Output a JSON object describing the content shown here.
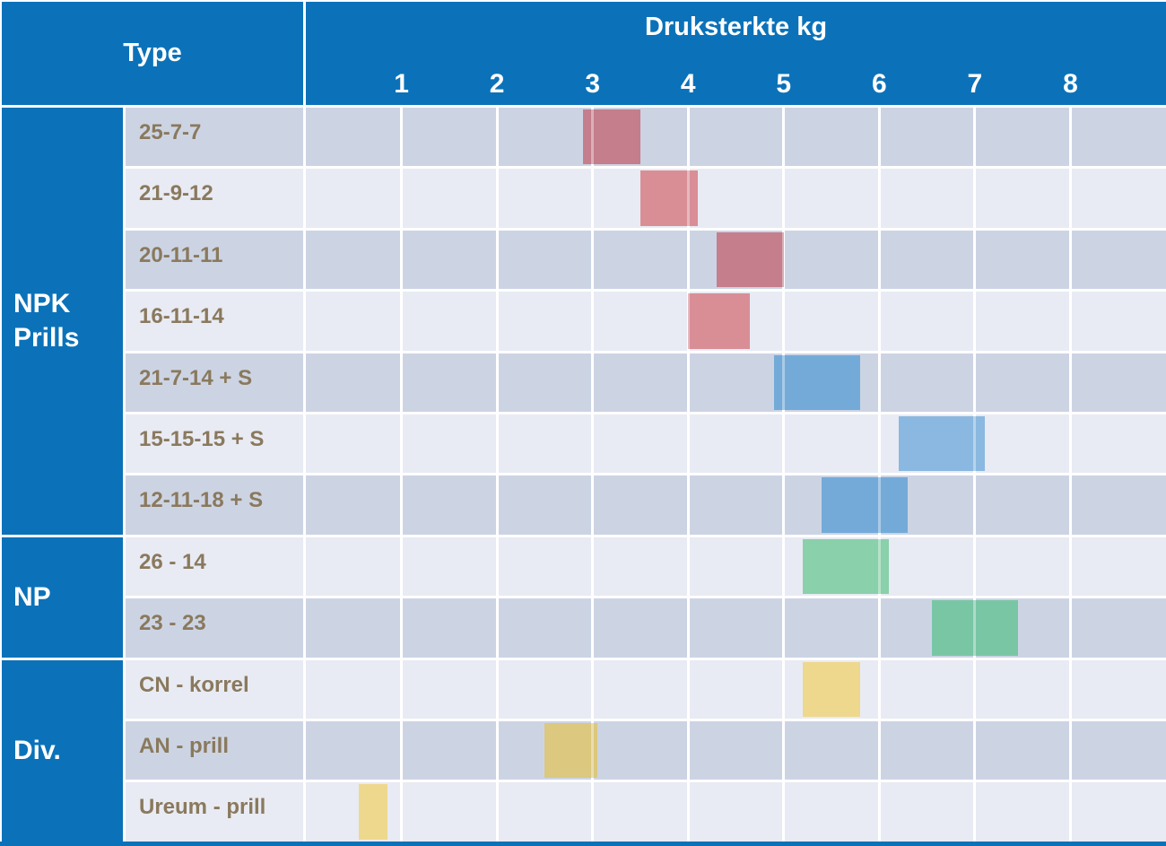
{
  "header": {
    "type_label": "Type",
    "scale_title": "Druksterkte kg"
  },
  "chart_data": {
    "type": "bar",
    "subtype": "horizontal-range",
    "title": "Druksterkte kg",
    "xlabel": "Druksterkte kg",
    "row_group_header": "Type",
    "x_ticks": [
      1,
      2,
      3,
      4,
      5,
      6,
      7,
      8
    ],
    "x_range": [
      0,
      9
    ],
    "grid": true,
    "legend": null,
    "groups": [
      {
        "label": "NPK Prills",
        "label_lines": [
          "NPK",
          "Prills"
        ],
        "start_row": 0,
        "row_count": 7
      },
      {
        "label": "NP",
        "label_lines": [
          "NP"
        ],
        "start_row": 7,
        "row_count": 2
      },
      {
        "label": "Div.",
        "label_lines": [
          "Div."
        ],
        "start_row": 9,
        "row_count": 3
      }
    ],
    "rows": [
      {
        "label": "25-7-7",
        "range_kg": [
          2.9,
          3.5
        ],
        "bar_color": "#c47e8c"
      },
      {
        "label": "21-9-12",
        "range_kg": [
          3.5,
          4.1
        ],
        "bar_color": "#d98e96"
      },
      {
        "label": "20-11-11",
        "range_kg": [
          4.3,
          5.0
        ],
        "bar_color": "#c47e8c"
      },
      {
        "label": "16-11-14",
        "range_kg": [
          4.0,
          4.65
        ],
        "bar_color": "#d98e96"
      },
      {
        "label": "21-7-14 + S",
        "range_kg": [
          4.9,
          5.8
        ],
        "bar_color": "#74aad8"
      },
      {
        "label": "15-15-15 + S",
        "range_kg": [
          6.2,
          7.1
        ],
        "bar_color": "#8ab8e0"
      },
      {
        "label": "12-11-18 + S",
        "range_kg": [
          5.4,
          6.3
        ],
        "bar_color": "#74aad8"
      },
      {
        "label": "26 - 14",
        "range_kg": [
          5.2,
          6.1
        ],
        "bar_color": "#8ad0ab"
      },
      {
        "label": "23 - 23",
        "range_kg": [
          6.55,
          7.45
        ],
        "bar_color": "#79c6a5"
      },
      {
        "label": "CN - korrel",
        "range_kg": [
          5.2,
          5.8
        ],
        "bar_color": "#eed88e"
      },
      {
        "label": "AN - prill",
        "range_kg": [
          2.5,
          3.05
        ],
        "bar_color": "#dcc87e"
      },
      {
        "label": "Ureum - prill",
        "range_kg": [
          0.55,
          0.85
        ],
        "bar_color": "#eed88e"
      }
    ]
  },
  "colors": {
    "header_blue": "#0b72b9",
    "row_dark": "#ccd4e4",
    "row_light": "#e8ebf3",
    "label_text": "#8a795d",
    "header_text": "#ffffff",
    "separator": "#ffffff"
  }
}
